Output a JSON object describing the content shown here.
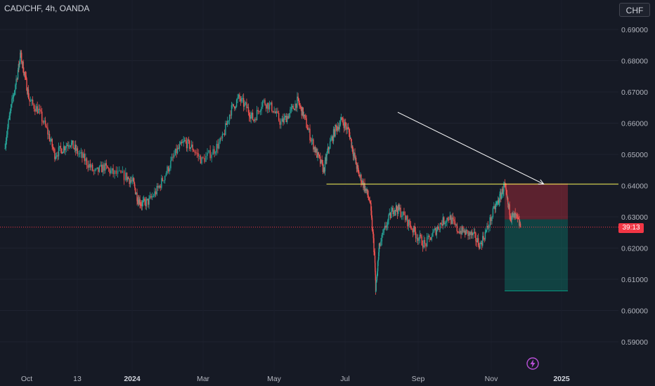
{
  "header": {
    "title": "CAD/CHF, 4h, OANDA",
    "currency_button": "CHF"
  },
  "current_price_tag": "39:13",
  "colors": {
    "background": "#161a25",
    "up": "#26a69a",
    "down": "#ef5350",
    "loss_zone": "#f23645",
    "profit_zone": "#089981",
    "resistance_line": "#f7f15a",
    "arrow": "#ffffff"
  },
  "chart_data": {
    "type": "candlestick",
    "ylim": [
      0.585,
      0.693
    ],
    "y_ticks": [
      "0.69000",
      "0.68000",
      "0.67000",
      "0.66000",
      "0.65000",
      "0.64000",
      "0.63000",
      "0.62000",
      "0.61000",
      "0.60000",
      "0.59000"
    ],
    "x_ticks": [
      {
        "label": "Oct",
        "bold": false
      },
      {
        "label": "13",
        "bold": false
      },
      {
        "label": "2024",
        "bold": true
      },
      {
        "label": "Mar",
        "bold": false
      },
      {
        "label": "May",
        "bold": false
      },
      {
        "label": "Jul",
        "bold": false
      },
      {
        "label": "Sep",
        "bold": false
      },
      {
        "label": "Nov",
        "bold": false
      },
      {
        "label": "2025",
        "bold": true
      }
    ],
    "price_path": [
      [
        "2023-09-18",
        0.652
      ],
      [
        "2023-09-24",
        0.665
      ],
      [
        "2023-09-30",
        0.677
      ],
      [
        "2023-10-02",
        0.682
      ],
      [
        "2023-10-06",
        0.675
      ],
      [
        "2023-10-10",
        0.667
      ],
      [
        "2023-10-18",
        0.664
      ],
      [
        "2023-10-26",
        0.657
      ],
      [
        "2023-11-01",
        0.65
      ],
      [
        "2023-11-08",
        0.652
      ],
      [
        "2023-11-14",
        0.654
      ],
      [
        "2023-11-20",
        0.651
      ],
      [
        "2023-11-28",
        0.648
      ],
      [
        "2023-12-06",
        0.644
      ],
      [
        "2023-12-14",
        0.646
      ],
      [
        "2023-12-22",
        0.644
      ],
      [
        "2024-01-02",
        0.643
      ],
      [
        "2024-01-08",
        0.641
      ],
      [
        "2024-01-12",
        0.636
      ],
      [
        "2024-01-16",
        0.634
      ],
      [
        "2024-01-22",
        0.635
      ],
      [
        "2024-01-30",
        0.639
      ],
      [
        "2024-02-07",
        0.645
      ],
      [
        "2024-02-15",
        0.651
      ],
      [
        "2024-02-22",
        0.654
      ],
      [
        "2024-02-29",
        0.652
      ],
      [
        "2024-03-08",
        0.648
      ],
      [
        "2024-03-18",
        0.651
      ],
      [
        "2024-03-26",
        0.655
      ],
      [
        "2024-04-02",
        0.664
      ],
      [
        "2024-04-09",
        0.668
      ],
      [
        "2024-04-16",
        0.665
      ],
      [
        "2024-04-22",
        0.661
      ],
      [
        "2024-04-30",
        0.667
      ],
      [
        "2024-05-08",
        0.665
      ],
      [
        "2024-05-16",
        0.66
      ],
      [
        "2024-05-23",
        0.663
      ],
      [
        "2024-05-30",
        0.667
      ],
      [
        "2024-06-04",
        0.663
      ],
      [
        "2024-06-10",
        0.656
      ],
      [
        "2024-06-16",
        0.65
      ],
      [
        "2024-06-22",
        0.645
      ],
      [
        "2024-06-26",
        0.652
      ],
      [
        "2024-07-02",
        0.658
      ],
      [
        "2024-07-08",
        0.661
      ],
      [
        "2024-07-14",
        0.657
      ],
      [
        "2024-07-18",
        0.65
      ],
      [
        "2024-07-22",
        0.644
      ],
      [
        "2024-07-27",
        0.64
      ],
      [
        "2024-08-01",
        0.635
      ],
      [
        "2024-08-05",
        0.618
      ],
      [
        "2024-08-06",
        0.606
      ],
      [
        "2024-08-09",
        0.62
      ],
      [
        "2024-08-16",
        0.628
      ],
      [
        "2024-08-22",
        0.633
      ],
      [
        "2024-08-27",
        0.632
      ],
      [
        "2024-09-04",
        0.628
      ],
      [
        "2024-09-11",
        0.624
      ],
      [
        "2024-09-18",
        0.621
      ],
      [
        "2024-09-26",
        0.625
      ],
      [
        "2024-10-02",
        0.628
      ],
      [
        "2024-10-09",
        0.63
      ],
      [
        "2024-10-16",
        0.626
      ],
      [
        "2024-10-23",
        0.625
      ],
      [
        "2024-10-30",
        0.624
      ],
      [
        "2024-11-05",
        0.621
      ],
      [
        "2024-11-11",
        0.626
      ],
      [
        "2024-11-18",
        0.633
      ],
      [
        "2024-11-22",
        0.636
      ],
      [
        "2024-11-26",
        0.64
      ],
      [
        "2024-11-29",
        0.634
      ],
      [
        "2024-12-02",
        0.63
      ],
      [
        "2024-12-06",
        0.63
      ],
      [
        "2024-12-10",
        0.627
      ]
    ],
    "x_range": [
      "2023-09-14",
      "2025-03-05"
    ],
    "candles_per_segment": 8,
    "resistance_level": 0.6405,
    "current_price": 0.6267,
    "position": {
      "start": "2024-11-26",
      "end": "2025-01-20",
      "entry": 0.6292,
      "stop": 0.6407,
      "target": 0.6063
    },
    "arrow": {
      "from": [
        "2024-08-25",
        0.6635
      ],
      "to": [
        "2024-12-30",
        0.6405
      ]
    }
  }
}
